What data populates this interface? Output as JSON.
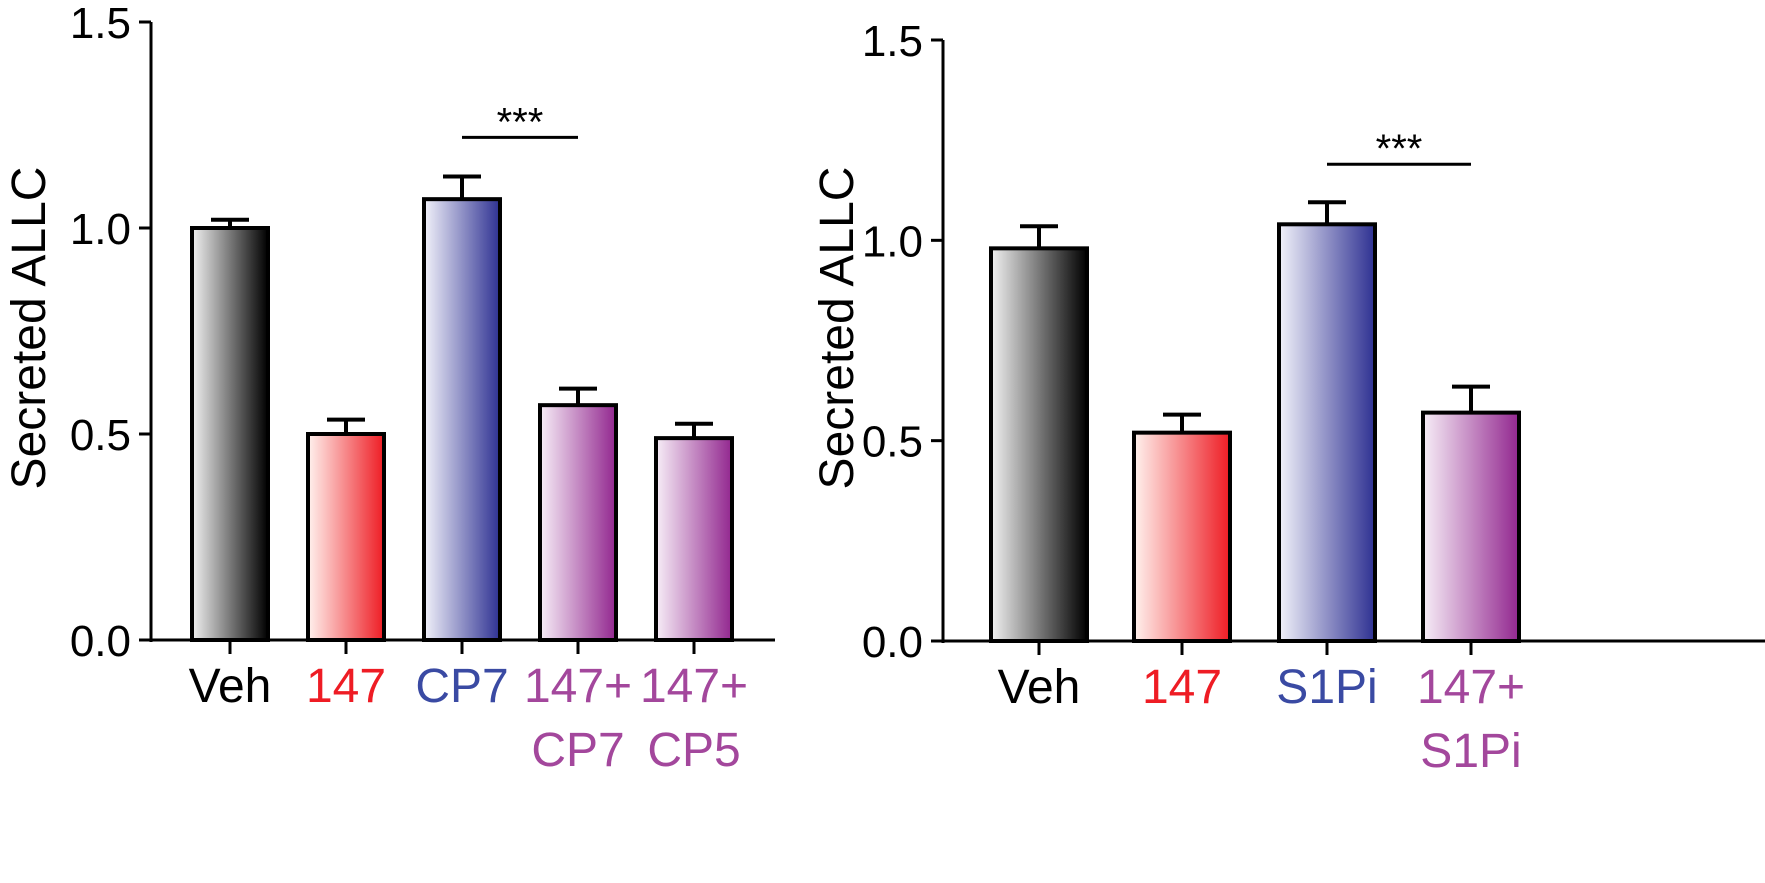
{
  "chart_data": [
    {
      "type": "bar",
      "ylabel": "Secreted ALLC",
      "ylim": [
        0,
        1.5
      ],
      "yticks": [
        "0.0",
        "0.5",
        "1.0",
        "1.5"
      ],
      "categories": [
        {
          "lines": [
            "Veh"
          ],
          "color": "#000000",
          "gradient": [
            "#f2f2f2",
            "#000000"
          ]
        },
        {
          "lines": [
            "147"
          ],
          "color": "#ee1c24",
          "gradient": [
            "#fff2ee",
            "#ee1c24"
          ]
        },
        {
          "lines": [
            "CP7"
          ],
          "color": "#3a4aa3",
          "gradient": [
            "#f2f2fa",
            "#2e3192"
          ]
        },
        {
          "lines": [
            "147+",
            "CP7"
          ],
          "color": "#a3479c",
          "gradient": [
            "#f7eef7",
            "#92278f"
          ]
        },
        {
          "lines": [
            "147+",
            "CP5"
          ],
          "color": "#a3479c",
          "gradient": [
            "#f7eef7",
            "#92278f"
          ]
        }
      ],
      "values": [
        1.0,
        0.5,
        1.07,
        0.57,
        0.49
      ],
      "errors": [
        0.02,
        0.035,
        0.055,
        0.04,
        0.035
      ],
      "significance": [
        {
          "from": 2,
          "to": 3,
          "label": "***",
          "y": 1.22
        }
      ]
    },
    {
      "type": "bar",
      "ylabel": "Secreted ALLC",
      "ylim": [
        0,
        1.5
      ],
      "yticks": [
        "0.0",
        "0.5",
        "1.0",
        "1.5"
      ],
      "categories": [
        {
          "lines": [
            "Veh"
          ],
          "color": "#000000",
          "gradient": [
            "#f2f2f2",
            "#000000"
          ]
        },
        {
          "lines": [
            "147"
          ],
          "color": "#ee1c24",
          "gradient": [
            "#fff2ee",
            "#ee1c24"
          ]
        },
        {
          "lines": [
            "S1Pi"
          ],
          "color": "#3a4aa3",
          "gradient": [
            "#f2f2fa",
            "#2e3192"
          ]
        },
        {
          "lines": [
            "147+",
            "S1Pi"
          ],
          "color": "#a3479c",
          "gradient": [
            "#f7eef7",
            "#92278f"
          ]
        }
      ],
      "values": [
        0.98,
        0.52,
        1.04,
        0.57
      ],
      "errors": [
        0.055,
        0.045,
        0.055,
        0.065
      ],
      "significance": [
        {
          "from": 2,
          "to": 3,
          "label": "***",
          "y": 1.19
        }
      ]
    }
  ]
}
